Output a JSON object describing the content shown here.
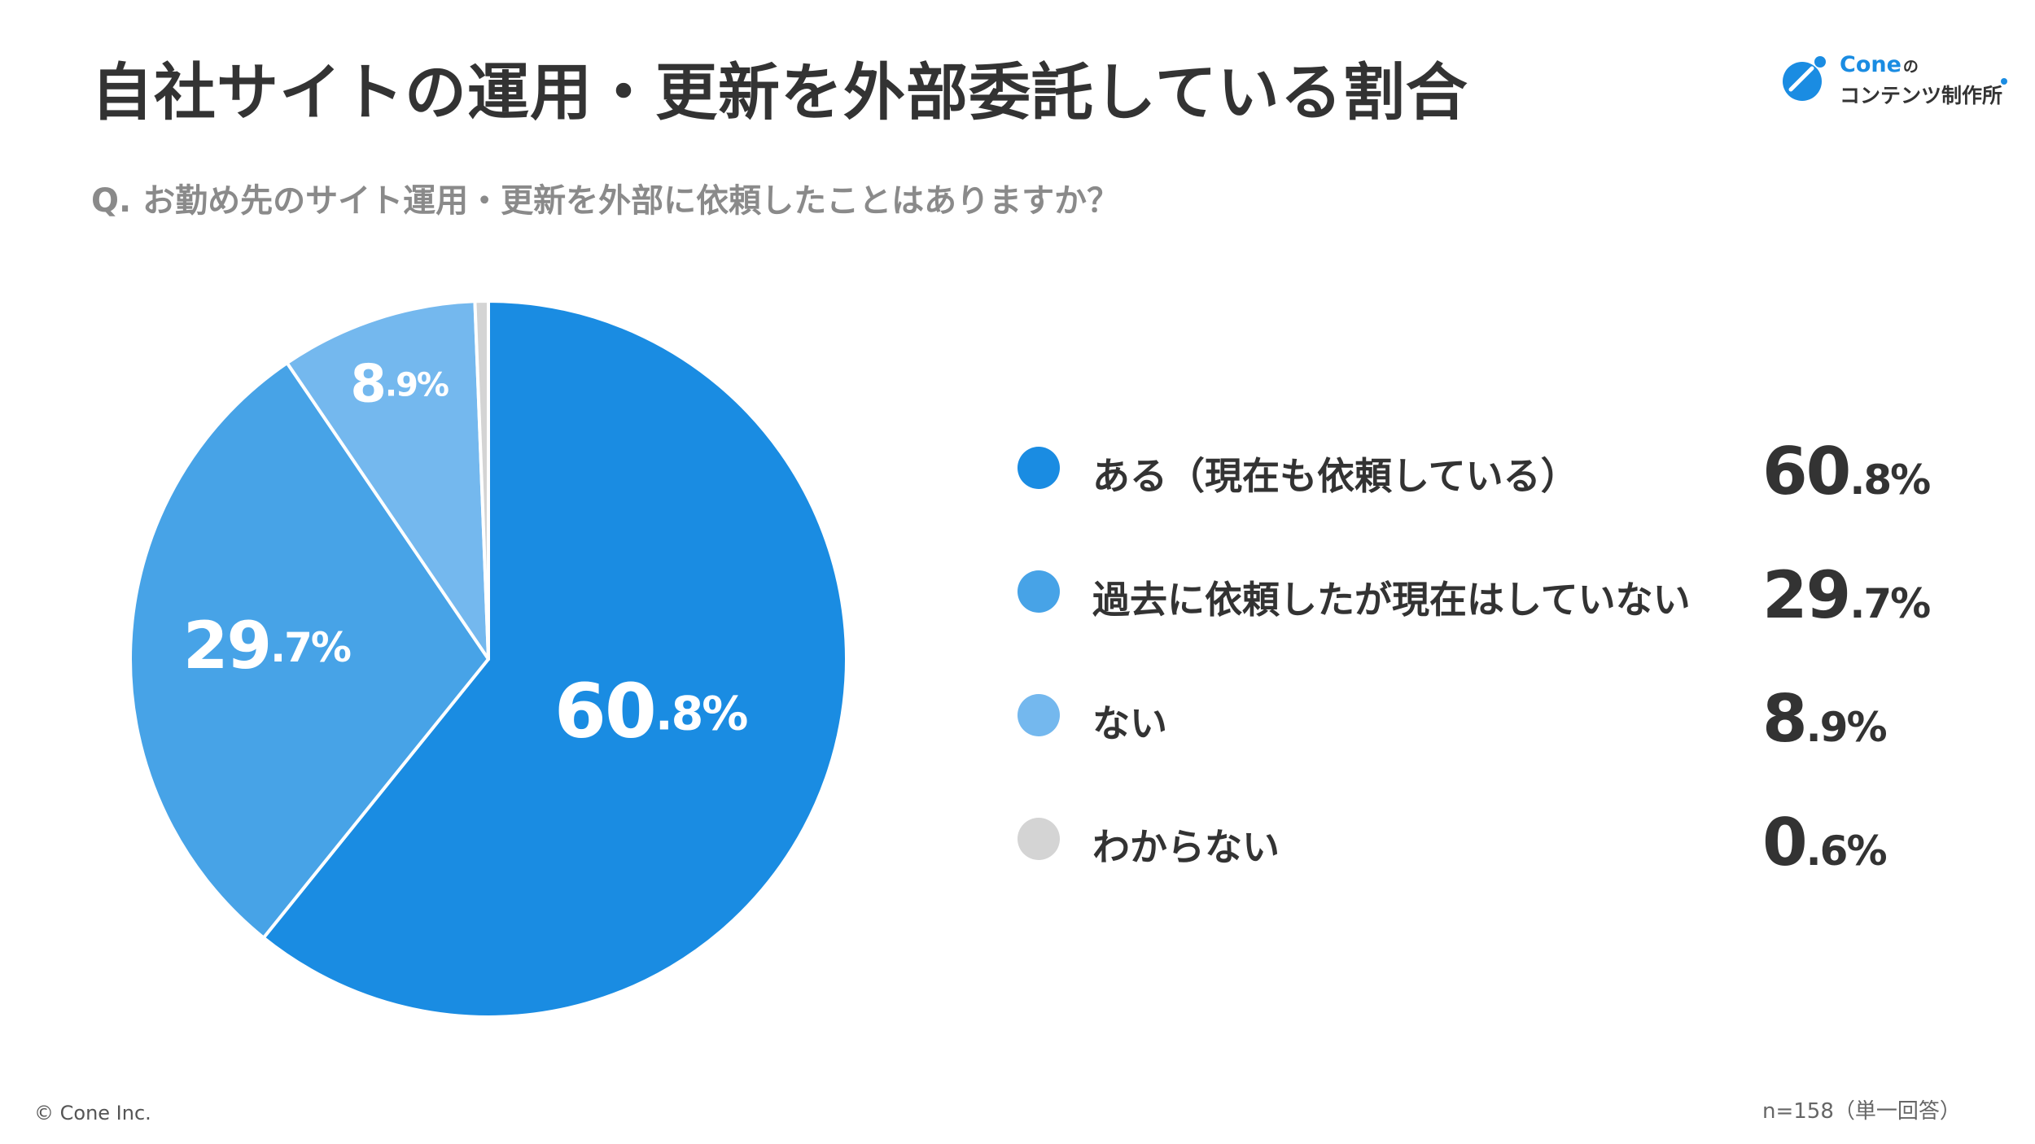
{
  "header": {
    "title": "自社サイトの運用・更新を外部委託している割合",
    "question": "Q. お勤め先のサイト運用・更新を外部に依頼したことはありますか？"
  },
  "logo": {
    "brand": "Cone",
    "brand_suffix": "の",
    "subtitle": "コンテンツ制作所",
    "icon": "cone-logo-icon"
  },
  "chart_data": {
    "type": "pie",
    "title": "",
    "categories": [
      "ある（現在も依頼している）",
      "過去に依頼したが現在はしていない",
      "ない",
      "わからない"
    ],
    "values": [
      60.8,
      29.7,
      8.9,
      0.6
    ],
    "colors": [
      "#1a8ce2",
      "#47a3e7",
      "#74b8ee",
      "#d4d4d4"
    ],
    "slice_labels": [
      {
        "int": "60",
        "dec": ".8%"
      },
      {
        "int": "29",
        "dec": ".7%"
      },
      {
        "int": "8",
        "dec": ".9%"
      },
      {
        "int": "",
        "dec": ""
      }
    ],
    "legend_placement": "right",
    "start_angle": "12 o'clock",
    "direction": "clockwise"
  },
  "legend": {
    "items": [
      {
        "label": "ある（現在も依頼している）",
        "int": "60",
        "dec": ".8%",
        "color": "#1a8ce2"
      },
      {
        "label": "過去に依頼したが現在はしていない",
        "int": "29",
        "dec": ".7%",
        "color": "#47a3e7"
      },
      {
        "label": "ない",
        "int": "8",
        "dec": ".9%",
        "color": "#74b8ee"
      },
      {
        "label": "わからない",
        "int": "0",
        "dec": ".6%",
        "color": "#d4d4d4"
      }
    ]
  },
  "footer": {
    "copyright": "© Cone Inc.",
    "sample_note": "n=158（単一回答）"
  }
}
